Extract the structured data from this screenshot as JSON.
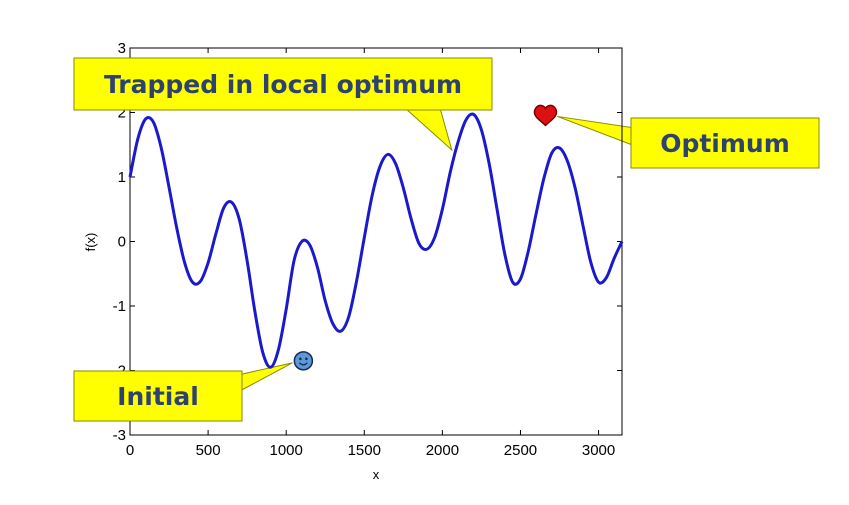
{
  "chart_data": {
    "type": "line",
    "title": "",
    "xlabel": "x",
    "ylabel": "f(x)",
    "xlim": [
      0,
      3150
    ],
    "ylim": [
      -3,
      3
    ],
    "xticks": [
      0,
      500,
      1000,
      1500,
      2000,
      2500,
      3000
    ],
    "yticks": [
      -3,
      -2,
      -1,
      0,
      1,
      2,
      3
    ],
    "grid": false,
    "series": [
      {
        "color": "#1a1acc",
        "x": [
          0,
          50,
          100,
          150,
          200,
          250,
          300,
          350,
          400,
          450,
          500,
          550,
          600,
          650,
          700,
          750,
          800,
          850,
          900,
          950,
          1000,
          1050,
          1100,
          1150,
          1200,
          1250,
          1300,
          1350,
          1400,
          1450,
          1500,
          1550,
          1600,
          1650,
          1700,
          1750,
          1800,
          1850,
          1900,
          1950,
          2000,
          2050,
          2100,
          2150,
          2200,
          2250,
          2300,
          2350,
          2400,
          2450,
          2500,
          2550,
          2600,
          2650,
          2700,
          2750,
          2800,
          2850,
          2900,
          2950,
          3000,
          3050,
          3100,
          3150
        ],
        "y": [
          1.0,
          1.59,
          1.9,
          1.85,
          1.45,
          0.84,
          0.2,
          -0.33,
          -0.63,
          -0.62,
          -0.33,
          0.12,
          0.52,
          0.61,
          0.34,
          -0.3,
          -1.09,
          -1.72,
          -1.95,
          -1.68,
          -1.05,
          -0.3,
          0.0,
          -0.05,
          -0.4,
          -0.92,
          -1.28,
          -1.39,
          -1.17,
          -0.62,
          0.06,
          0.71,
          1.16,
          1.35,
          1.21,
          0.83,
          0.35,
          -0.03,
          -0.12,
          0.06,
          0.5,
          1.07,
          1.54,
          1.88,
          1.97,
          1.73,
          1.2,
          0.5,
          -0.2,
          -0.63,
          -0.58,
          -0.15,
          0.43,
          0.98,
          1.37,
          1.45,
          1.25,
          0.83,
          0.25,
          -0.32,
          -0.63,
          -0.56,
          -0.26,
          0.0
        ]
      }
    ],
    "markers": [
      {
        "name": "initial",
        "x": 1110,
        "y": -1.85,
        "color": "#5a9bd5"
      },
      {
        "name": "optimum",
        "x": 2660,
        "y": 1.97,
        "color": "#dd1111"
      }
    ],
    "annotations": [
      {
        "name": "trapped",
        "text": "Trapped in local optimum",
        "target_x": 2060,
        "target_y": 1.42
      },
      {
        "name": "optimum",
        "text": "Optimum",
        "target_x": 2660,
        "target_y": 1.97
      },
      {
        "name": "initial",
        "text": "Initial",
        "target_x": 1110,
        "target_y": -1.85
      }
    ]
  }
}
